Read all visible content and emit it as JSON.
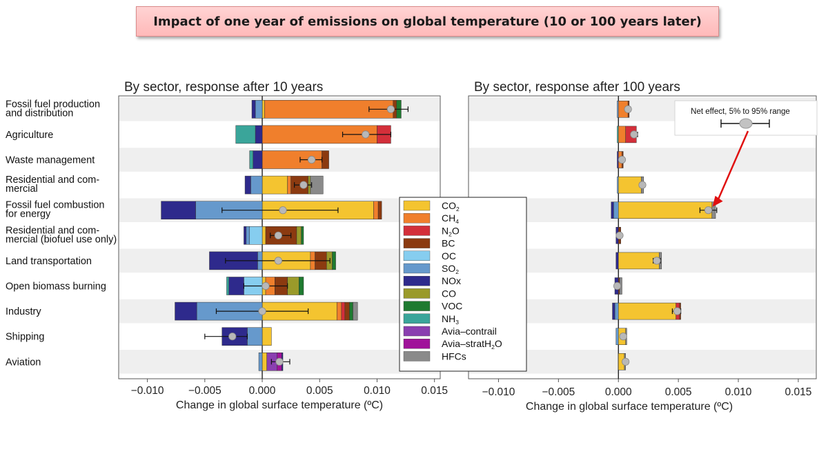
{
  "page": {
    "title": "Impact of one year of emissions on global temperature (10 or 100 years later)"
  },
  "colors": {
    "CO2": "#f4c430",
    "CH4": "#f07f2c",
    "N2O": "#d32f3a",
    "BC": "#8b3a10",
    "OC": "#86cdef",
    "SO2": "#6699cc",
    "NOx": "#2e2a8c",
    "CO": "#9a9a2a",
    "VOC": "#1e7a30",
    "NH3": "#3aa59a",
    "Avia-contrail": "#8a3fb0",
    "Avia-stratH2O": "#a0129a",
    "HFCs": "#8a8a8a"
  },
  "chart_data": [
    {
      "type": "bar",
      "orientation": "horizontal-stacked",
      "title": "By sector, response after 10 years",
      "xlabel": "Change in global surface temperature (ºC)",
      "xlim": [
        -0.0125,
        0.0155
      ],
      "xticks": [
        -0.01,
        -0.005,
        0.0,
        0.005,
        0.01,
        0.015
      ],
      "xtick_labels": [
        "−0.010",
        "−0.005",
        "0.000",
        "0.005",
        "0.010",
        "0.015"
      ],
      "categories": [
        "Fossil fuel production\nand distribution",
        "Agriculture",
        "Waste management",
        "Residential and com-\nmercial",
        "Fossil fuel combustion\nfor energy",
        "Residential and com-\nmercial (biofuel use only)",
        "Land transportation",
        "Open biomass burning",
        "Industry",
        "Shipping",
        "Aviation"
      ],
      "segments": [
        [
          {
            "c": "CO2",
            "v": 0.0002
          },
          {
            "c": "CH4",
            "v": 0.0112
          },
          {
            "c": "BC",
            "v": 0.0003
          },
          {
            "c": "VOC",
            "v": 0.0004
          },
          {
            "c": "SO2",
            "v": -0.0006
          },
          {
            "c": "NOx",
            "v": -0.0003
          }
        ],
        [
          {
            "c": "CH4",
            "v": 0.01
          },
          {
            "c": "N2O",
            "v": 0.0012
          },
          {
            "c": "NOx",
            "v": -0.0006
          },
          {
            "c": "NH3",
            "v": -0.0017
          }
        ],
        [
          {
            "c": "CH4",
            "v": 0.0052
          },
          {
            "c": "BC",
            "v": 0.0006
          },
          {
            "c": "NOx",
            "v": -0.0008
          },
          {
            "c": "NH3",
            "v": -0.0003
          }
        ],
        [
          {
            "c": "CO2",
            "v": 0.0022
          },
          {
            "c": "CH4",
            "v": 0.0003
          },
          {
            "c": "BC",
            "v": 0.0015
          },
          {
            "c": "CO",
            "v": 0.0002
          },
          {
            "c": "HFCs",
            "v": 0.0011
          },
          {
            "c": "SO2",
            "v": -0.001
          },
          {
            "c": "NOx",
            "v": -0.0005
          }
        ],
        [
          {
            "c": "CO2",
            "v": 0.0097
          },
          {
            "c": "CH4",
            "v": 0.0004
          },
          {
            "c": "BC",
            "v": 0.0003
          },
          {
            "c": "SO2",
            "v": -0.0058
          },
          {
            "c": "NOx",
            "v": -0.003
          }
        ],
        [
          {
            "c": "CO2",
            "v": 0.0003
          },
          {
            "c": "BC",
            "v": 0.0027
          },
          {
            "c": "CO",
            "v": 0.0004
          },
          {
            "c": "VOC",
            "v": 0.0002
          },
          {
            "c": "OC",
            "v": -0.0011
          },
          {
            "c": "SO2",
            "v": -0.0003
          },
          {
            "c": "NOx",
            "v": -0.0002
          }
        ],
        [
          {
            "c": "CO2",
            "v": 0.0042
          },
          {
            "c": "CH4",
            "v": 0.0004
          },
          {
            "c": "BC",
            "v": 0.001
          },
          {
            "c": "CO",
            "v": 0.0005
          },
          {
            "c": "VOC",
            "v": 0.0003
          },
          {
            "c": "SO2",
            "v": -0.0004
          },
          {
            "c": "NOx",
            "v": -0.0042
          }
        ],
        [
          {
            "c": "CO2",
            "v": 0.0003
          },
          {
            "c": "CH4",
            "v": 0.0008
          },
          {
            "c": "BC",
            "v": 0.0011
          },
          {
            "c": "CO",
            "v": 0.001
          },
          {
            "c": "VOC",
            "v": 0.0004
          },
          {
            "c": "OC",
            "v": -0.0016
          },
          {
            "c": "NOx",
            "v": -0.0013
          },
          {
            "c": "NH3",
            "v": -0.0002
          }
        ],
        [
          {
            "c": "CO2",
            "v": 0.0065
          },
          {
            "c": "CH4",
            "v": 0.0004
          },
          {
            "c": "N2O",
            "v": 0.0003
          },
          {
            "c": "BC",
            "v": 0.0004
          },
          {
            "c": "VOC",
            "v": 0.0003
          },
          {
            "c": "HFCs",
            "v": 0.0004
          },
          {
            "c": "SO2",
            "v": -0.0057
          },
          {
            "c": "NOx",
            "v": -0.0019
          }
        ],
        [
          {
            "c": "CO2",
            "v": 0.0008
          },
          {
            "c": "SO2",
            "v": -0.0013
          },
          {
            "c": "NOx",
            "v": -0.0022
          }
        ],
        [
          {
            "c": "CO2",
            "v": 0.0004
          },
          {
            "c": "Avia-contrail",
            "v": 0.0009
          },
          {
            "c": "Avia-stratH2O",
            "v": 0.0004
          },
          {
            "c": "NOx",
            "v": 0.0001
          },
          {
            "c": "SO2",
            "v": -0.0003
          }
        ]
      ],
      "net_effect": [
        {
          "value": 0.0112,
          "lo": 0.0093,
          "hi": 0.0127
        },
        {
          "value": 0.009,
          "lo": 0.007,
          "hi": 0.0112
        },
        {
          "value": 0.0043,
          "lo": 0.0033,
          "hi": 0.0052
        },
        {
          "value": 0.0036,
          "lo": 0.0028,
          "hi": 0.0043
        },
        {
          "value": 0.0018,
          "lo": -0.0035,
          "hi": 0.0066
        },
        {
          "value": 0.0014,
          "lo": 0.0007,
          "hi": 0.0025
        },
        {
          "value": 0.0014,
          "lo": -0.0032,
          "hi": 0.0059
        },
        {
          "value": 0.0003,
          "lo": -0.0016,
          "hi": 0.0022
        },
        {
          "value": 0.0,
          "lo": -0.004,
          "hi": 0.004
        },
        {
          "value": -0.0026,
          "lo": -0.005,
          "hi": -0.0013
        },
        {
          "value": 0.0015,
          "lo": 0.0008,
          "hi": 0.0024
        }
      ]
    },
    {
      "type": "bar",
      "orientation": "horizontal-stacked",
      "title": "By sector, response after 100 years",
      "xlabel": "Change in global surface temperature (ºC)",
      "xlim": [
        -0.0125,
        0.0165
      ],
      "xticks": [
        -0.01,
        -0.005,
        0.0,
        0.005,
        0.01,
        0.015
      ],
      "xtick_labels": [
        "−0.010",
        "−0.005",
        "0.000",
        "0.005",
        "0.010",
        "0.015"
      ],
      "segments": [
        [
          {
            "c": "CH4",
            "v": 0.0008
          },
          {
            "c": "BC",
            "v": 0.0001
          },
          {
            "c": "SO2",
            "v": -0.0001
          }
        ],
        [
          {
            "c": "CH4",
            "v": 0.0006
          },
          {
            "c": "N2O",
            "v": 0.0009
          },
          {
            "c": "NH3",
            "v": -0.0001
          }
        ],
        [
          {
            "c": "CH4",
            "v": 0.0003
          },
          {
            "c": "BC",
            "v": 0.0001
          },
          {
            "c": "NOx",
            "v": -0.0001
          }
        ],
        [
          {
            "c": "CO2",
            "v": 0.0019
          },
          {
            "c": "HFCs",
            "v": 0.0002
          },
          {
            "c": "SO2",
            "v": -0.0001
          }
        ],
        [
          {
            "c": "CO2",
            "v": 0.0078
          },
          {
            "c": "HFCs",
            "v": 0.0003
          },
          {
            "c": "SO2",
            "v": -0.0004
          },
          {
            "c": "NOx",
            "v": -0.0002
          }
        ],
        [
          {
            "c": "BC",
            "v": 0.0002
          },
          {
            "c": "NOx",
            "v": -0.0002
          }
        ],
        [
          {
            "c": "CO2",
            "v": 0.0034
          },
          {
            "c": "HFCs",
            "v": 0.0002
          },
          {
            "c": "NOx",
            "v": -0.0002
          }
        ],
        [
          {
            "c": "BC",
            "v": 0.0001
          },
          {
            "c": "HFCs",
            "v": 0.0002
          },
          {
            "c": "NOx",
            "v": -0.0003
          }
        ],
        [
          {
            "c": "CO2",
            "v": 0.0048
          },
          {
            "c": "N2O",
            "v": 0.0003
          },
          {
            "c": "BC",
            "v": 0.0001
          },
          {
            "c": "SO2",
            "v": -0.0003
          },
          {
            "c": "NOx",
            "v": -0.0002
          }
        ],
        [
          {
            "c": "CO2",
            "v": 0.0006
          },
          {
            "c": "HFCs",
            "v": 0.0001
          },
          {
            "c": "SO2",
            "v": -0.0002
          }
        ],
        [
          {
            "c": "CO2",
            "v": 0.0005
          },
          {
            "c": "HFCs",
            "v": 0.0001
          }
        ]
      ],
      "net_effect": [
        {
          "value": 0.0008,
          "lo": 0.0006,
          "hi": 0.001
        },
        {
          "value": 0.0013,
          "lo": 0.0011,
          "hi": 0.0016
        },
        {
          "value": 0.0003,
          "lo": 0.0002,
          "hi": 0.0004
        },
        {
          "value": 0.002,
          "lo": 0.0018,
          "hi": 0.0022
        },
        {
          "value": 0.0075,
          "lo": 0.0068,
          "hi": 0.0082
        },
        {
          "value": 0.0001,
          "lo": 0.0,
          "hi": 0.0002
        },
        {
          "value": 0.0032,
          "lo": 0.0029,
          "hi": 0.0035
        },
        {
          "value": -0.0001,
          "lo": -0.0002,
          "hi": 0.0
        },
        {
          "value": 0.0049,
          "lo": 0.0045,
          "hi": 0.0052
        },
        {
          "value": 0.0004,
          "lo": 0.0002,
          "hi": 0.0006
        },
        {
          "value": 0.0006,
          "lo": 0.0004,
          "hi": 0.0008
        }
      ],
      "inset_legend": {
        "label": "Net effect, 5% to 95% range"
      }
    }
  ],
  "legend": {
    "entries": [
      {
        "key": "CO2",
        "main": "CO",
        "sub": "2",
        "tail": ""
      },
      {
        "key": "CH4",
        "main": "CH",
        "sub": "4",
        "tail": ""
      },
      {
        "key": "N2O",
        "main": "N",
        "sub": "2",
        "tail": "O"
      },
      {
        "key": "BC",
        "main": "BC",
        "sub": "",
        "tail": ""
      },
      {
        "key": "OC",
        "main": "OC",
        "sub": "",
        "tail": ""
      },
      {
        "key": "SO2",
        "main": "SO",
        "sub": "2",
        "tail": ""
      },
      {
        "key": "NOx",
        "main": "NOx",
        "sub": "",
        "tail": ""
      },
      {
        "key": "CO",
        "main": "CO",
        "sub": "",
        "tail": ""
      },
      {
        "key": "VOC",
        "main": "VOC",
        "sub": "",
        "tail": ""
      },
      {
        "key": "NH3",
        "main": "NH",
        "sub": "3",
        "tail": ""
      },
      {
        "key": "Avia-contrail",
        "main": "Avia–contrail",
        "sub": "",
        "tail": ""
      },
      {
        "key": "Avia-stratH2O",
        "main": "Avia–stratH",
        "sub": "2",
        "tail": "O"
      },
      {
        "key": "HFCs",
        "main": "HFCs",
        "sub": "",
        "tail": ""
      }
    ]
  }
}
